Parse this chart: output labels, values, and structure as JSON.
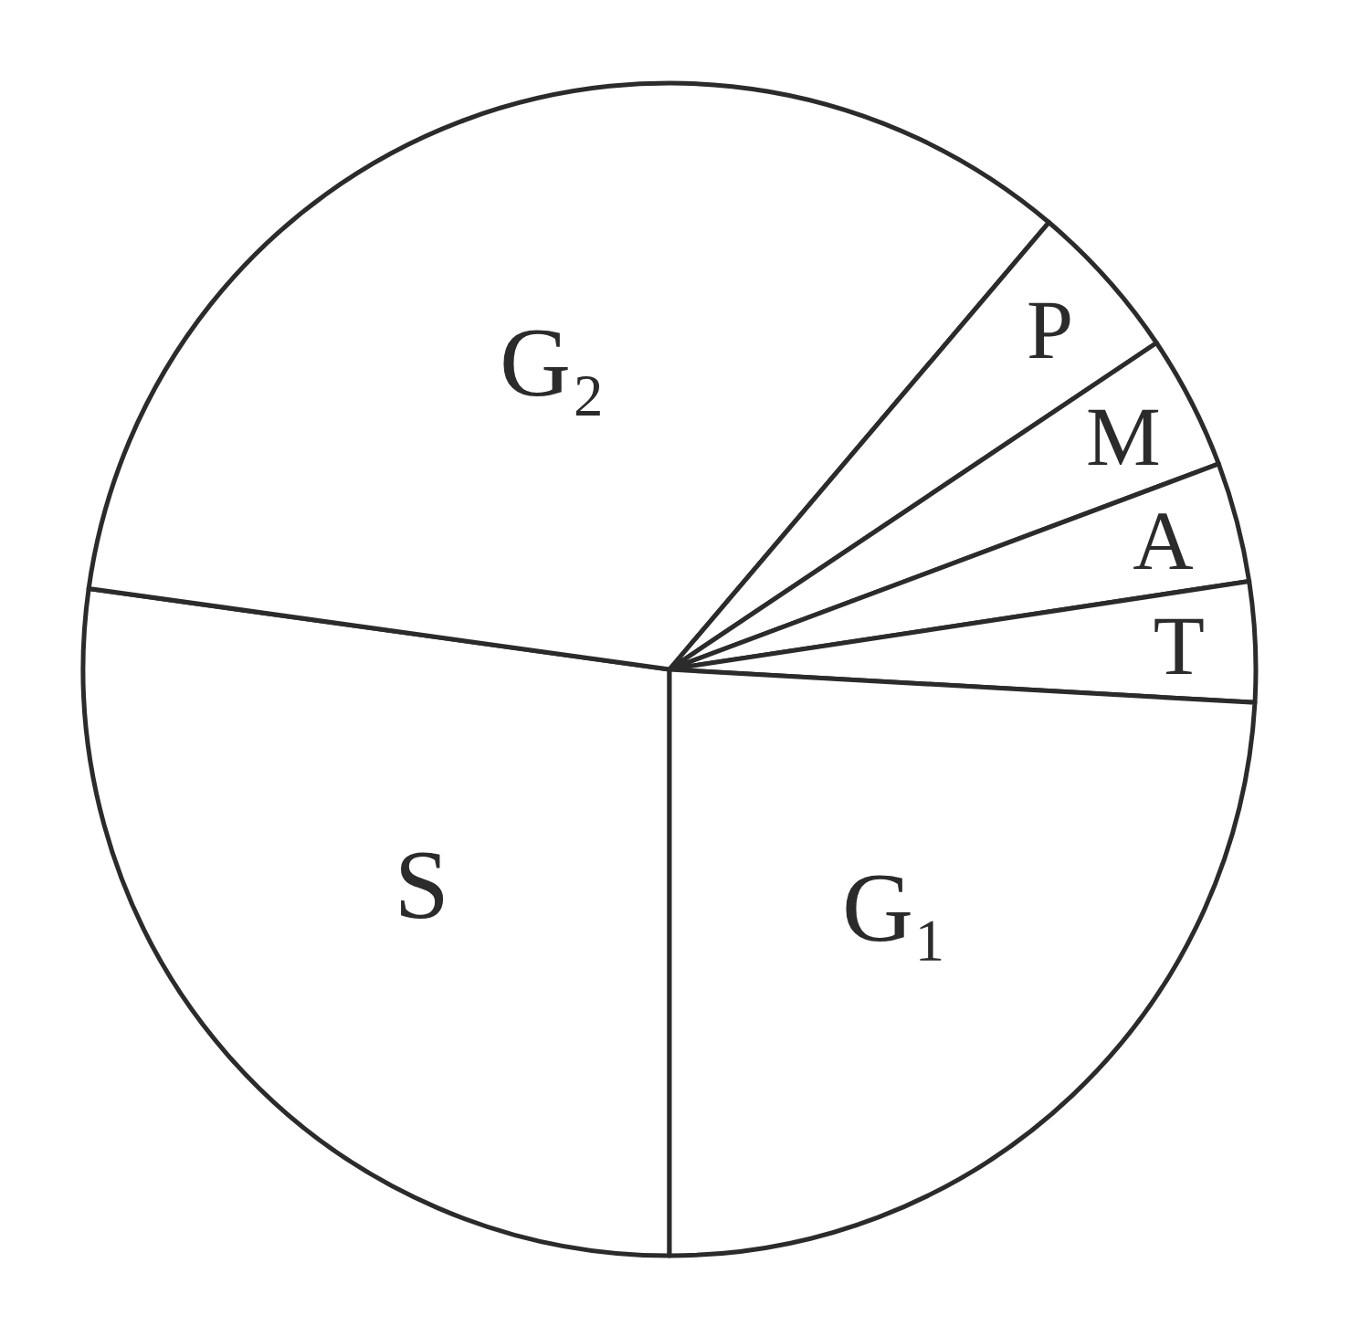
{
  "chart_data": {
    "type": "pie",
    "categories": [
      "S",
      "G₂",
      "P",
      "M",
      "A",
      "T",
      "G₁"
    ],
    "values": [
      27.2,
      34.0,
      4.4,
      3.7,
      3.3,
      3.3,
      24.1
    ],
    "colors": [
      "#ffffff",
      "#ffffff",
      "#ffffff",
      "#ffffff",
      "#ffffff",
      "#ffffff",
      "#ffffff"
    ]
  }
}
